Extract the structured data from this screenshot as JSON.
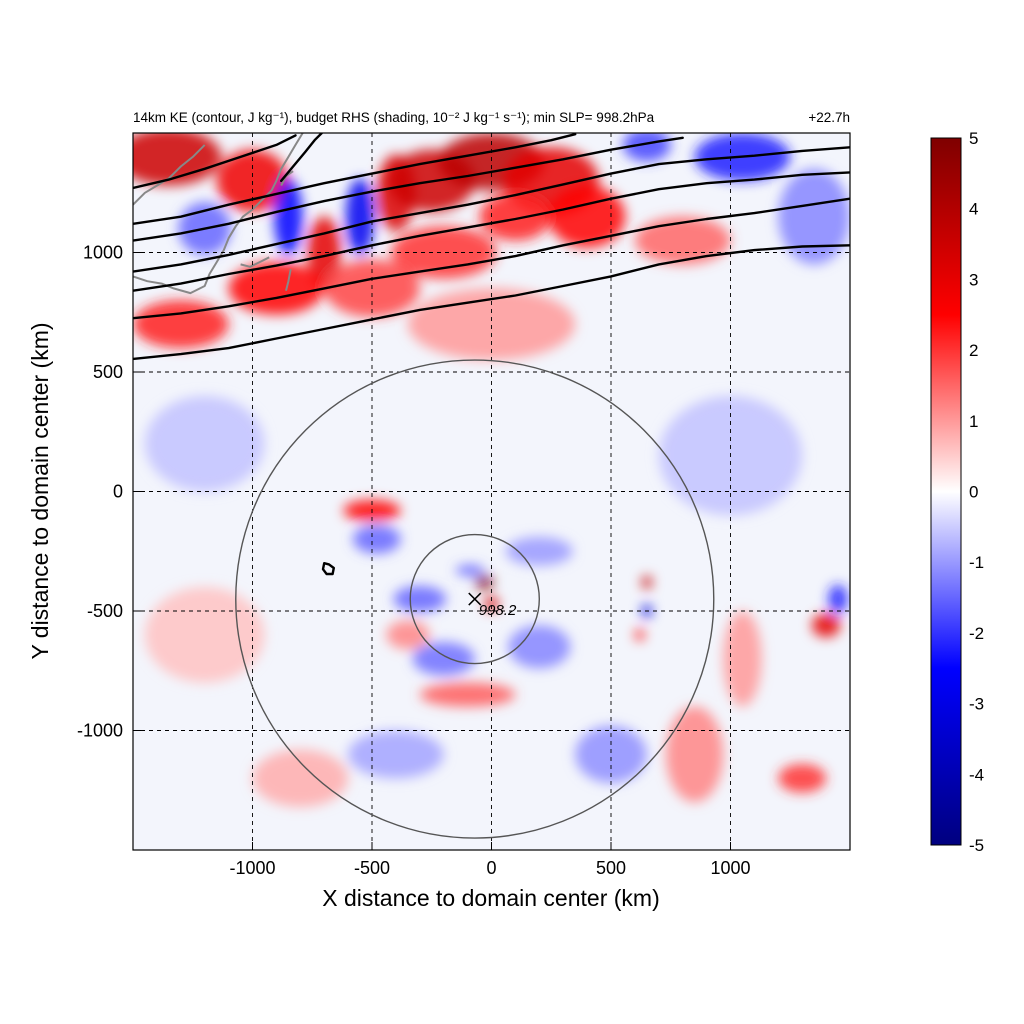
{
  "chart_data": {
    "type": "heatmap",
    "title_left": "14km KE (contour, J kg⁻¹), budget RHS (shading, 10⁻² J kg⁻¹ s⁻¹); min SLP= 998.2hPa",
    "title_right": "+22.7h",
    "xlabel": "X distance to domain center (km)",
    "ylabel": "Y distance to domain center (km)",
    "xlim": [
      -1500,
      1500
    ],
    "ylim": [
      -1500,
      1500
    ],
    "x_ticks": [
      -1000,
      -500,
      0,
      500,
      1000
    ],
    "y_ticks": [
      1000,
      500,
      0,
      -500,
      -1000
    ],
    "x_tick_labels": [
      "-1000",
      "-500",
      "0",
      "500",
      "1000"
    ],
    "y_tick_labels": [
      "1000",
      "500",
      "0",
      "-500",
      "-1000"
    ],
    "grid": true,
    "colorbar": {
      "range": [
        -5,
        5
      ],
      "ticks": [
        5,
        4,
        3,
        2,
        1,
        0,
        -1,
        -2,
        -3,
        -4,
        -5
      ],
      "tick_labels": [
        "5",
        "4",
        "3",
        "2",
        "1",
        "0",
        "-1",
        "-2",
        "-3",
        "-4",
        "-5"
      ],
      "colormap": [
        "#00007f",
        "#0000ff",
        "#ffffff",
        "#ff0000",
        "#7f0000"
      ]
    },
    "storm_center": {
      "x": -70,
      "y": -450,
      "min_slp_label": "998.2"
    },
    "range_rings_km": [
      270,
      1000
    ],
    "ke_contours": [
      [
        [
          -1500,
          555
        ],
        [
          -1300,
          575
        ],
        [
          -1100,
          600
        ],
        [
          -900,
          640
        ],
        [
          -700,
          680
        ],
        [
          -500,
          720
        ],
        [
          -300,
          760
        ],
        [
          -100,
          790
        ],
        [
          100,
          820
        ],
        [
          300,
          860
        ],
        [
          500,
          900
        ],
        [
          700,
          950
        ],
        [
          900,
          985
        ],
        [
          1100,
          1010
        ],
        [
          1300,
          1025
        ],
        [
          1500,
          1030
        ]
      ],
      [
        [
          -1500,
          725
        ],
        [
          -1300,
          745
        ],
        [
          -1100,
          775
        ],
        [
          -900,
          810
        ],
        [
          -700,
          850
        ],
        [
          -500,
          890
        ],
        [
          -300,
          920
        ],
        [
          -100,
          950
        ],
        [
          100,
          985
        ],
        [
          300,
          1030
        ],
        [
          500,
          1070
        ],
        [
          700,
          1110
        ],
        [
          900,
          1140
        ],
        [
          1100,
          1165
        ],
        [
          1300,
          1195
        ],
        [
          1500,
          1225
        ]
      ],
      [
        [
          -1500,
          840
        ],
        [
          -1300,
          870
        ],
        [
          -1100,
          910
        ],
        [
          -900,
          945
        ],
        [
          -700,
          985
        ],
        [
          -500,
          1030
        ],
        [
          -300,
          1070
        ],
        [
          -100,
          1105
        ],
        [
          100,
          1140
        ],
        [
          300,
          1180
        ],
        [
          500,
          1225
        ],
        [
          700,
          1265
        ],
        [
          900,
          1290
        ],
        [
          1100,
          1305
        ],
        [
          1300,
          1325
        ],
        [
          1500,
          1335
        ]
      ],
      [
        [
          -1500,
          920
        ],
        [
          -1300,
          950
        ],
        [
          -1100,
          990
        ],
        [
          -900,
          1035
        ],
        [
          -700,
          1080
        ],
        [
          -500,
          1130
        ],
        [
          -300,
          1165
        ],
        [
          -100,
          1200
        ],
        [
          100,
          1240
        ],
        [
          300,
          1285
        ],
        [
          500,
          1330
        ],
        [
          700,
          1370
        ],
        [
          900,
          1390
        ],
        [
          1100,
          1405
        ],
        [
          1300,
          1425
        ],
        [
          1500,
          1440
        ]
      ],
      [
        [
          -1500,
          1050
        ],
        [
          -1300,
          1080
        ],
        [
          -1100,
          1120
        ],
        [
          -900,
          1170
        ],
        [
          -700,
          1215
        ],
        [
          -500,
          1255
        ],
        [
          -300,
          1290
        ],
        [
          -100,
          1320
        ],
        [
          100,
          1355
        ],
        [
          300,
          1390
        ],
        [
          500,
          1430
        ],
        [
          700,
          1465
        ],
        [
          800,
          1480
        ]
      ],
      [
        [
          -1500,
          1120
        ],
        [
          -1300,
          1150
        ],
        [
          -1100,
          1200
        ],
        [
          -900,
          1245
        ],
        [
          -700,
          1290
        ],
        [
          -500,
          1330
        ],
        [
          -300,
          1370
        ],
        [
          -100,
          1405
        ],
        [
          100,
          1440
        ],
        [
          250,
          1470
        ],
        [
          350,
          1495
        ]
      ],
      [
        [
          -1500,
          1270
        ],
        [
          -1350,
          1305
        ],
        [
          -1200,
          1350
        ],
        [
          -1050,
          1400
        ],
        [
          -900,
          1450
        ],
        [
          -820,
          1490
        ]
      ],
      [
        [
          -880,
          1300
        ],
        [
          -830,
          1360
        ],
        [
          -780,
          1420
        ],
        [
          -740,
          1470
        ],
        [
          -710,
          1500
        ]
      ],
      [
        [
          -700,
          -300
        ],
        [
          -680,
          -305
        ],
        [
          -660,
          -320
        ],
        [
          -665,
          -345
        ],
        [
          -690,
          -345
        ],
        [
          -705,
          -325
        ],
        [
          -700,
          -300
        ]
      ]
    ],
    "rhs_features": [
      {
        "x": -1350,
        "y": 1400,
        "v": 3.5,
        "rx": 220,
        "ry": 120
      },
      {
        "x": -1000,
        "y": 1300,
        "v": 2.8,
        "rx": 150,
        "ry": 130
      },
      {
        "x": -850,
        "y": 1150,
        "v": -2.5,
        "rx": 60,
        "ry": 160
      },
      {
        "x": -700,
        "y": 1000,
        "v": 3.0,
        "rx": 70,
        "ry": 150
      },
      {
        "x": -550,
        "y": 1150,
        "v": -2.8,
        "rx": 60,
        "ry": 160
      },
      {
        "x": -400,
        "y": 1250,
        "v": 3.2,
        "rx": 80,
        "ry": 160
      },
      {
        "x": -250,
        "y": 1300,
        "v": 3.5,
        "rx": 180,
        "ry": 130
      },
      {
        "x": 0,
        "y": 1380,
        "v": 3.8,
        "rx": 220,
        "ry": 120
      },
      {
        "x": 250,
        "y": 1300,
        "v": 3.0,
        "rx": 200,
        "ry": 140
      },
      {
        "x": 400,
        "y": 1150,
        "v": 2.5,
        "rx": 160,
        "ry": 130
      },
      {
        "x": 100,
        "y": 1150,
        "v": 2.2,
        "rx": 150,
        "ry": 100
      },
      {
        "x": -200,
        "y": 1000,
        "v": 2.0,
        "rx": 220,
        "ry": 110
      },
      {
        "x": -900,
        "y": 850,
        "v": 2.5,
        "rx": 200,
        "ry": 110
      },
      {
        "x": -500,
        "y": 850,
        "v": 1.8,
        "rx": 200,
        "ry": 120
      },
      {
        "x": -1300,
        "y": 700,
        "v": 2.2,
        "rx": 200,
        "ry": 100
      },
      {
        "x": 0,
        "y": 700,
        "v": 1.0,
        "rx": 350,
        "ry": 150
      },
      {
        "x": 1050,
        "y": 1400,
        "v": -2.2,
        "rx": 200,
        "ry": 100
      },
      {
        "x": 1350,
        "y": 1150,
        "v": -1.2,
        "rx": 150,
        "ry": 200
      },
      {
        "x": 650,
        "y": 1450,
        "v": -1.8,
        "rx": 100,
        "ry": 70
      },
      {
        "x": -1200,
        "y": 1100,
        "v": -1.5,
        "rx": 110,
        "ry": 110
      },
      {
        "x": 800,
        "y": 1050,
        "v": 1.5,
        "rx": 200,
        "ry": 100
      },
      {
        "x": -500,
        "y": -80,
        "v": 2.5,
        "rx": 120,
        "ry": 45
      },
      {
        "x": -480,
        "y": -200,
        "v": -1.5,
        "rx": 100,
        "ry": 60
      },
      {
        "x": -30,
        "y": -380,
        "v": 5.0,
        "rx": 38,
        "ry": 28
      },
      {
        "x": 0,
        "y": -470,
        "v": 3.2,
        "rx": 30,
        "ry": 30
      },
      {
        "x": -90,
        "y": -330,
        "v": -1.6,
        "rx": 60,
        "ry": 22
      },
      {
        "x": -300,
        "y": -450,
        "v": -1.5,
        "rx": 110,
        "ry": 55
      },
      {
        "x": -200,
        "y": -700,
        "v": -1.4,
        "rx": 130,
        "ry": 70
      },
      {
        "x": 200,
        "y": -650,
        "v": -1.2,
        "rx": 130,
        "ry": 90
      },
      {
        "x": -100,
        "y": -850,
        "v": 1.6,
        "rx": 200,
        "ry": 50
      },
      {
        "x": -350,
        "y": -600,
        "v": 1.2,
        "rx": 90,
        "ry": 60
      },
      {
        "x": 200,
        "y": -250,
        "v": -1.0,
        "rx": 140,
        "ry": 60
      },
      {
        "x": 650,
        "y": -380,
        "v": 3.6,
        "rx": 22,
        "ry": 28
      },
      {
        "x": 650,
        "y": -500,
        "v": -3.2,
        "rx": 22,
        "ry": 28
      },
      {
        "x": 620,
        "y": -600,
        "v": 2.5,
        "rx": 20,
        "ry": 24
      },
      {
        "x": 1400,
        "y": -560,
        "v": 3.0,
        "rx": 60,
        "ry": 50
      },
      {
        "x": 1450,
        "y": -450,
        "v": -2.2,
        "rx": 40,
        "ry": 60
      },
      {
        "x": 1300,
        "y": -1200,
        "v": 2.0,
        "rx": 100,
        "ry": 60
      },
      {
        "x": 850,
        "y": -1100,
        "v": 1.2,
        "rx": 120,
        "ry": 200
      },
      {
        "x": 1050,
        "y": -700,
        "v": 1.0,
        "rx": 80,
        "ry": 200
      },
      {
        "x": 500,
        "y": -1100,
        "v": -1.1,
        "rx": 150,
        "ry": 120
      },
      {
        "x": -800,
        "y": -1200,
        "v": 0.8,
        "rx": 200,
        "ry": 120
      },
      {
        "x": -1200,
        "y": -600,
        "v": 0.6,
        "rx": 250,
        "ry": 200
      },
      {
        "x": -1200,
        "y": 200,
        "v": -0.6,
        "rx": 250,
        "ry": 200
      },
      {
        "x": 1000,
        "y": 150,
        "v": -0.6,
        "rx": 300,
        "ry": 250
      },
      {
        "x": -400,
        "y": -1100,
        "v": -0.9,
        "rx": 200,
        "ry": 100
      }
    ],
    "coastlines": [
      [
        [
          -1500,
          1200
        ],
        [
          -1450,
          1250
        ],
        [
          -1400,
          1280
        ],
        [
          -1350,
          1310
        ],
        [
          -1300,
          1360
        ],
        [
          -1250,
          1400
        ],
        [
          -1200,
          1450
        ]
      ],
      [
        [
          -1500,
          900
        ],
        [
          -1440,
          880
        ],
        [
          -1380,
          870
        ],
        [
          -1330,
          850
        ],
        [
          -1260,
          830
        ],
        [
          -1200,
          860
        ],
        [
          -1180,
          910
        ],
        [
          -1150,
          960
        ],
        [
          -1120,
          1010
        ],
        [
          -1100,
          1060
        ],
        [
          -1070,
          1110
        ],
        [
          -1040,
          1150
        ],
        [
          -1000,
          1180
        ]
      ],
      [
        [
          -1000,
          1180
        ],
        [
          -960,
          1220
        ],
        [
          -920,
          1260
        ],
        [
          -900,
          1300
        ],
        [
          -880,
          1350
        ],
        [
          -850,
          1400
        ],
        [
          -820,
          1450
        ],
        [
          -790,
          1500
        ]
      ],
      [
        [
          -1050,
          950
        ],
        [
          -1010,
          940
        ],
        [
          -970,
          960
        ],
        [
          -930,
          980
        ]
      ],
      [
        [
          -860,
          840
        ],
        [
          -850,
          880
        ],
        [
          -840,
          930
        ]
      ],
      [
        [
          -880,
          1280
        ],
        [
          -860,
          1320
        ],
        [
          -830,
          1340
        ]
      ]
    ]
  }
}
